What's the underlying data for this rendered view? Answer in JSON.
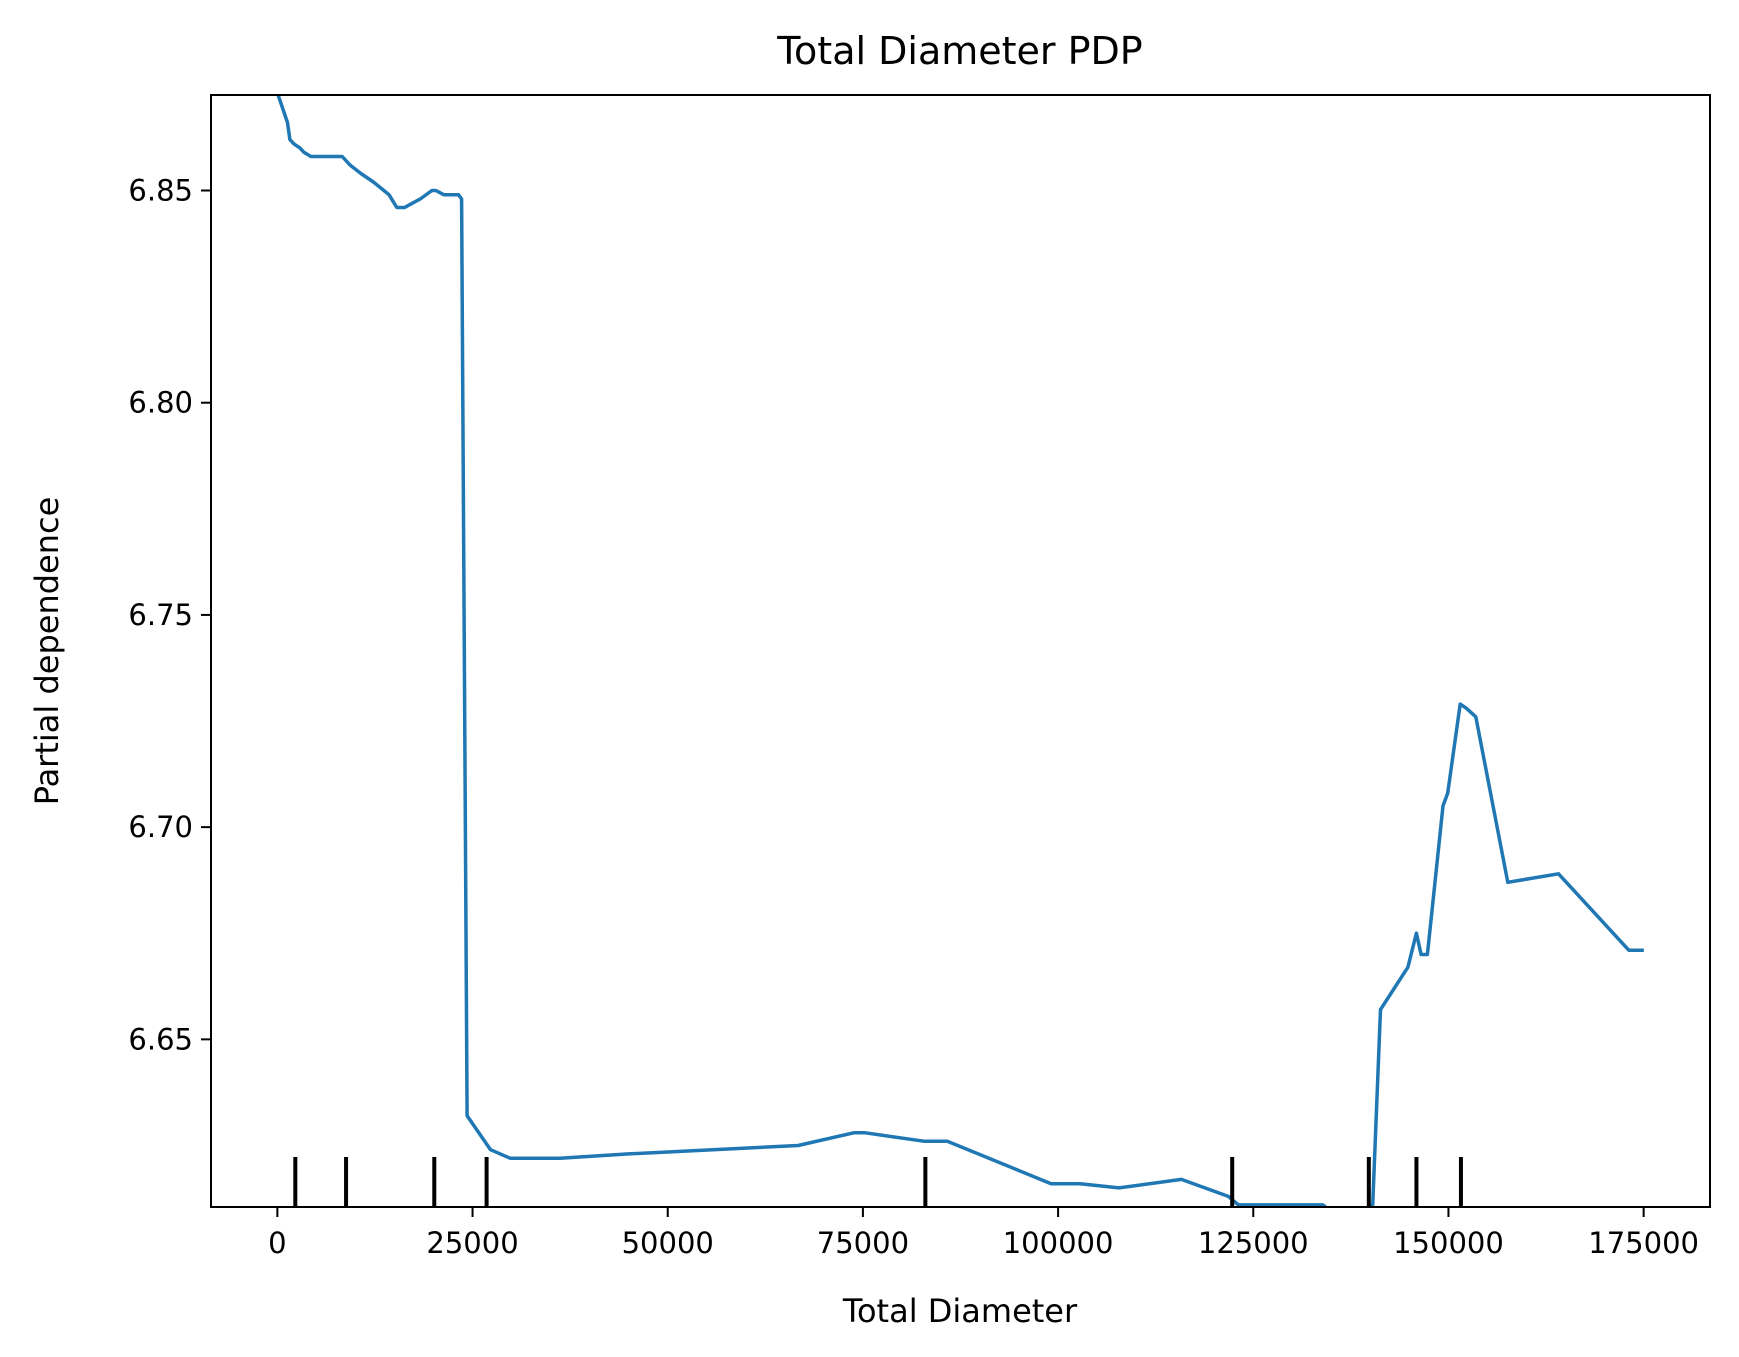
{
  "chart_data": {
    "type": "line",
    "title": "Total Diameter PDP",
    "xlabel": "Total Diameter",
    "ylabel": "Partial dependence",
    "xlim": [
      -8500,
      183500
    ],
    "ylim": [
      6.6105,
      6.8725
    ],
    "xticks": [
      0,
      25000,
      50000,
      75000,
      100000,
      125000,
      150000,
      175000
    ],
    "yticks": [
      6.65,
      6.7,
      6.75,
      6.8,
      6.85
    ],
    "ytick_labels": [
      "6.65",
      "6.70",
      "6.75",
      "6.80",
      "6.85"
    ],
    "grid": false,
    "line_color": "#1f77b4",
    "rug_color": "#000000",
    "rug_x": [
      2300,
      8800,
      20100,
      26800,
      83000,
      122300,
      139800,
      145900,
      151600
    ],
    "series": [
      {
        "x": [
          0,
          1300,
          1600,
          2100,
          2900,
          3400,
          4300,
          6300,
          8300,
          9300,
          10700,
          12300,
          14300,
          15300,
          15700,
          16300,
          17300,
          18300,
          19800,
          20300,
          21300,
          22300,
          23200,
          23600,
          24300,
          27300,
          29800,
          36200,
          45000,
          66700,
          73900,
          75200,
          82800,
          85800,
          99100,
          102800,
          107800,
          115800,
          121800,
          123100,
          133900,
          135300,
          136600,
          139300,
          140300,
          141300,
          144800,
          145900,
          146500,
          147300,
          149300,
          149900,
          151500,
          152300,
          153500,
          157600,
          164100,
          173100,
          174800
        ],
        "y": [
          6.873,
          6.866,
          6.862,
          6.861,
          6.86,
          6.859,
          6.858,
          6.858,
          6.858,
          6.856,
          6.854,
          6.852,
          6.849,
          6.846,
          6.846,
          6.846,
          6.847,
          6.848,
          6.85,
          6.85,
          6.849,
          6.849,
          6.849,
          6.848,
          6.632,
          6.624,
          6.622,
          6.622,
          6.623,
          6.625,
          6.628,
          6.628,
          6.626,
          6.626,
          6.616,
          6.616,
          6.615,
          6.617,
          6.613,
          6.611,
          6.611,
          6.609,
          6.61,
          6.61,
          6.611,
          6.657,
          6.667,
          6.675,
          6.67,
          6.67,
          6.705,
          6.708,
          6.729,
          6.728,
          6.726,
          6.687,
          6.689,
          6.671,
          6.671
        ]
      }
    ]
  }
}
